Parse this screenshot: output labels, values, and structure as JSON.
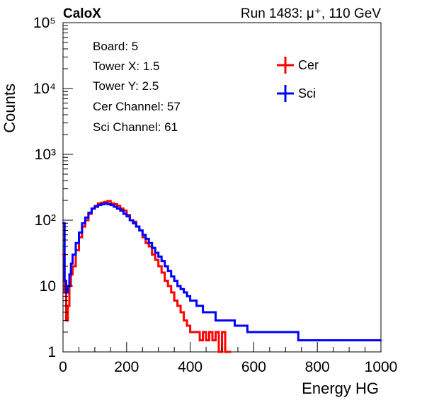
{
  "header": {
    "brand": "CaloX",
    "run_label": "Run 1483:   μ⁺, 110 GeV"
  },
  "info_box": {
    "lines": [
      "Board: 5",
      "Tower X: 1.5",
      "Tower Y: 2.5",
      "Cer Channel: 57",
      "Sci Channel: 61"
    ]
  },
  "legend": {
    "items": [
      {
        "label": "Cer",
        "color": "#ff0000"
      },
      {
        "label": "Sci",
        "color": "#0000ff"
      }
    ]
  },
  "chart_data": {
    "type": "line",
    "xlabel": "Energy HG",
    "ylabel": "Counts",
    "xlim": [
      0,
      1000
    ],
    "ylim": [
      1,
      100000
    ],
    "yscale": "log",
    "x_ticks": [
      0,
      200,
      400,
      600,
      800,
      1000
    ],
    "x_tick_labels": [
      "0",
      "200",
      "400",
      "600",
      "800",
      "1000"
    ],
    "y_ticks": [
      1,
      10,
      100,
      1000,
      10000,
      100000
    ],
    "y_tick_labels": [
      "1",
      "10",
      "10²",
      "10³",
      "10⁴",
      "10⁵"
    ],
    "grid": false,
    "legend_position": "top-right",
    "series": [
      {
        "name": "Cer",
        "color": "#ff0000",
        "x": [
          0,
          5,
          10,
          15,
          20,
          25,
          30,
          40,
          50,
          60,
          70,
          80,
          90,
          100,
          110,
          120,
          130,
          140,
          150,
          160,
          170,
          180,
          190,
          200,
          210,
          220,
          230,
          240,
          250,
          260,
          270,
          280,
          290,
          300,
          310,
          320,
          330,
          340,
          350,
          360,
          370,
          380,
          390,
          400,
          410,
          420,
          430,
          440,
          450,
          460,
          470,
          480,
          490,
          500,
          510,
          520
        ],
        "y": [
          30,
          8,
          3,
          5,
          10,
          15,
          20,
          35,
          55,
          80,
          100,
          125,
          150,
          165,
          180,
          185,
          190,
          195,
          180,
          175,
          165,
          150,
          140,
          120,
          100,
          95,
          80,
          70,
          55,
          45,
          40,
          30,
          25,
          20,
          16,
          12,
          10,
          8,
          6,
          5,
          4,
          3,
          2.5,
          2,
          2,
          2,
          1.5,
          2,
          1.5,
          2,
          1.5,
          2,
          1,
          2,
          1,
          1
        ]
      },
      {
        "name": "Sci",
        "color": "#0000ff",
        "x": [
          0,
          5,
          10,
          15,
          20,
          25,
          30,
          40,
          50,
          60,
          70,
          80,
          90,
          100,
          110,
          120,
          130,
          140,
          150,
          160,
          170,
          180,
          190,
          200,
          210,
          220,
          230,
          240,
          250,
          260,
          270,
          280,
          290,
          300,
          310,
          320,
          330,
          340,
          350,
          360,
          370,
          380,
          390,
          400,
          420,
          440,
          460,
          480,
          500,
          520,
          540,
          560,
          580,
          600,
          620,
          640,
          660,
          680,
          700,
          720,
          740,
          760,
          780,
          800,
          820,
          840,
          860,
          880,
          900,
          920,
          940,
          960,
          980,
          1000
        ],
        "y": [
          90,
          12,
          8,
          10,
          15,
          22,
          30,
          45,
          65,
          90,
          110,
          130,
          150,
          160,
          170,
          175,
          180,
          175,
          170,
          160,
          150,
          140,
          125,
          115,
          100,
          90,
          80,
          70,
          60,
          52,
          45,
          38,
          32,
          28,
          24,
          20,
          17,
          14,
          12,
          10,
          9,
          8,
          7,
          6,
          5,
          4,
          4,
          3,
          3,
          3,
          2.5,
          2.5,
          2,
          2,
          2,
          2,
          2,
          2,
          2,
          2,
          1.5,
          1.5,
          1.5,
          1.5,
          1.5,
          1.5,
          1.5,
          1.5,
          1.5,
          1.5,
          1.5,
          1.5,
          1.5,
          1.5
        ]
      }
    ]
  }
}
